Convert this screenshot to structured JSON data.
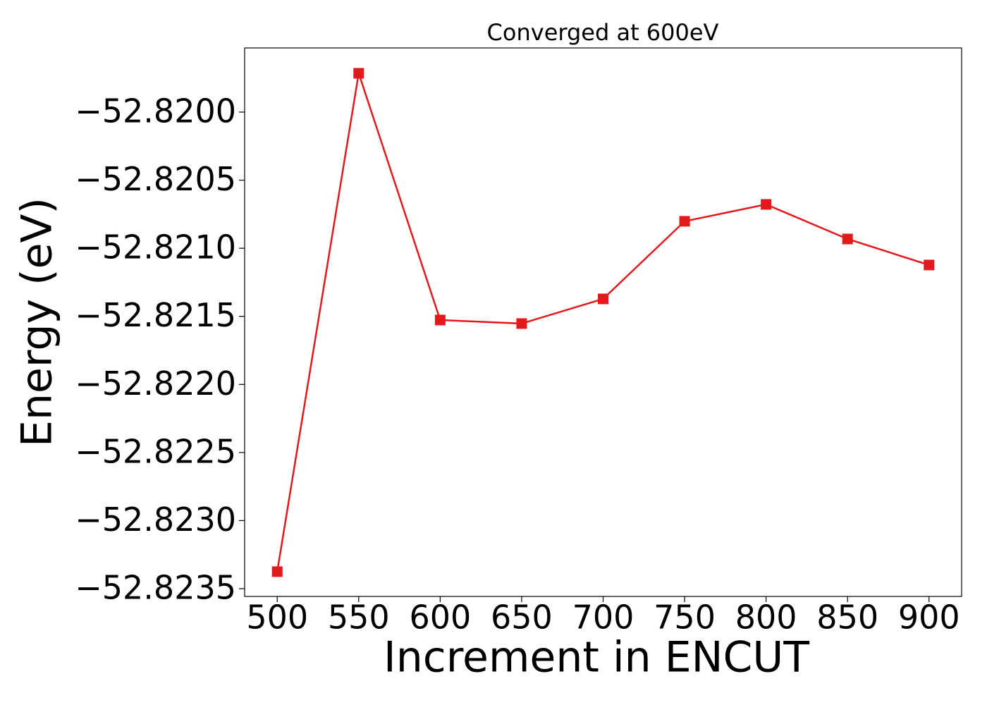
{
  "chart_data": {
    "type": "line",
    "title": "Converged at 600eV",
    "xlabel": "Increment in ENCUT",
    "ylabel": "Energy (eV)",
    "x": [
      500,
      550,
      600,
      650,
      700,
      750,
      800,
      850,
      900
    ],
    "values": [
      -52.823375,
      -52.819715,
      -52.821527,
      -52.821553,
      -52.821372,
      -52.820802,
      -52.820678,
      -52.820932,
      -52.821123
    ],
    "color": "#e31a1c",
    "marker": "square",
    "xlim": [
      480,
      920
    ],
    "ylim": [
      -52.823557,
      -52.819529
    ],
    "xticks": [
      500,
      550,
      600,
      650,
      700,
      750,
      800,
      850,
      900
    ],
    "yticks": [
      {
        "value": -52.82,
        "label": "−52.8200"
      },
      {
        "value": -52.8205,
        "label": "−52.8205"
      },
      {
        "value": -52.821,
        "label": "−52.8210"
      },
      {
        "value": -52.8215,
        "label": "−52.8215"
      },
      {
        "value": -52.822,
        "label": "−52.8220"
      },
      {
        "value": -52.8225,
        "label": "−52.8225"
      },
      {
        "value": -52.823,
        "label": "−52.8230"
      },
      {
        "value": -52.8235,
        "label": "−52.8235"
      }
    ],
    "grid": false
  }
}
